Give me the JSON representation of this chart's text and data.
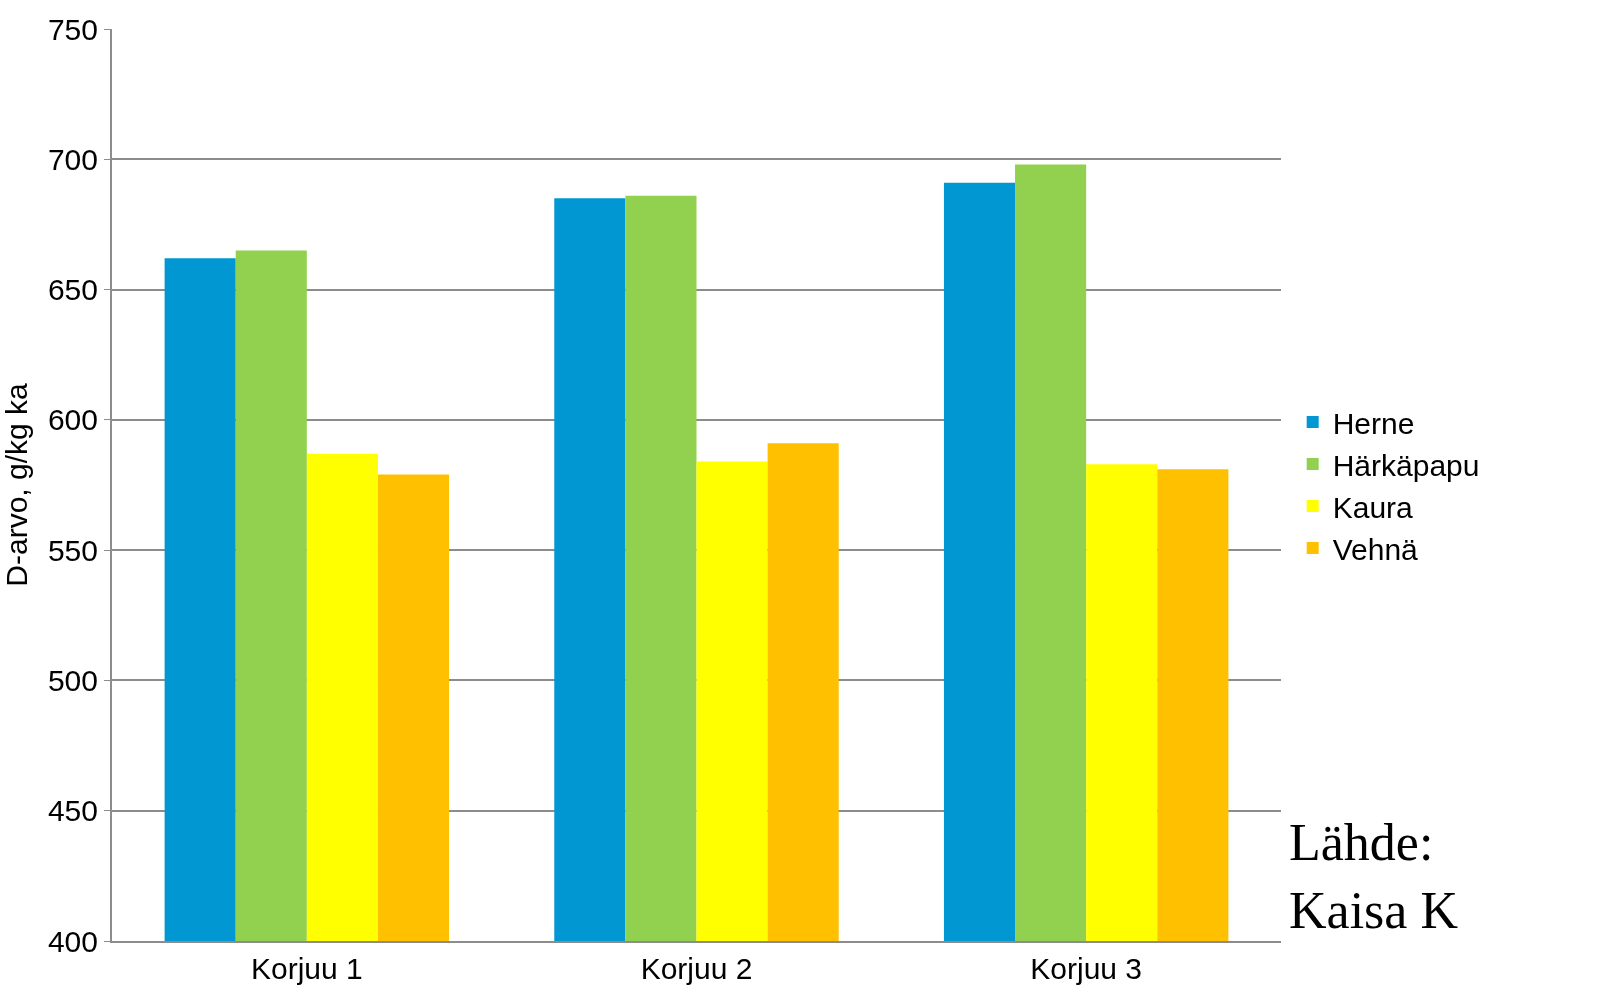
{
  "chart_data": {
    "type": "bar",
    "ylabel": "D-arvo, g/kg ka",
    "categories": [
      "Korjuu 1",
      "Korjuu 2",
      "Korjuu 3"
    ],
    "series": [
      {
        "name": "Herne",
        "color": "#0097d2",
        "values": [
          662,
          685,
          691
        ]
      },
      {
        "name": "Härkäpapu",
        "color": "#92d050",
        "values": [
          665,
          686,
          698
        ]
      },
      {
        "name": "Kaura",
        "color": "#ffff00",
        "values": [
          587,
          584,
          583
        ]
      },
      {
        "name": "Vehnä",
        "color": "#ffc000",
        "values": [
          579,
          591,
          581
        ]
      }
    ],
    "ylim": [
      400,
      750
    ],
    "yticks": [
      400,
      450,
      500,
      550,
      600,
      650,
      700,
      750
    ],
    "grid": "y",
    "legend": "right",
    "annotations": [
      "Lähde:\nKaisa K"
    ]
  }
}
